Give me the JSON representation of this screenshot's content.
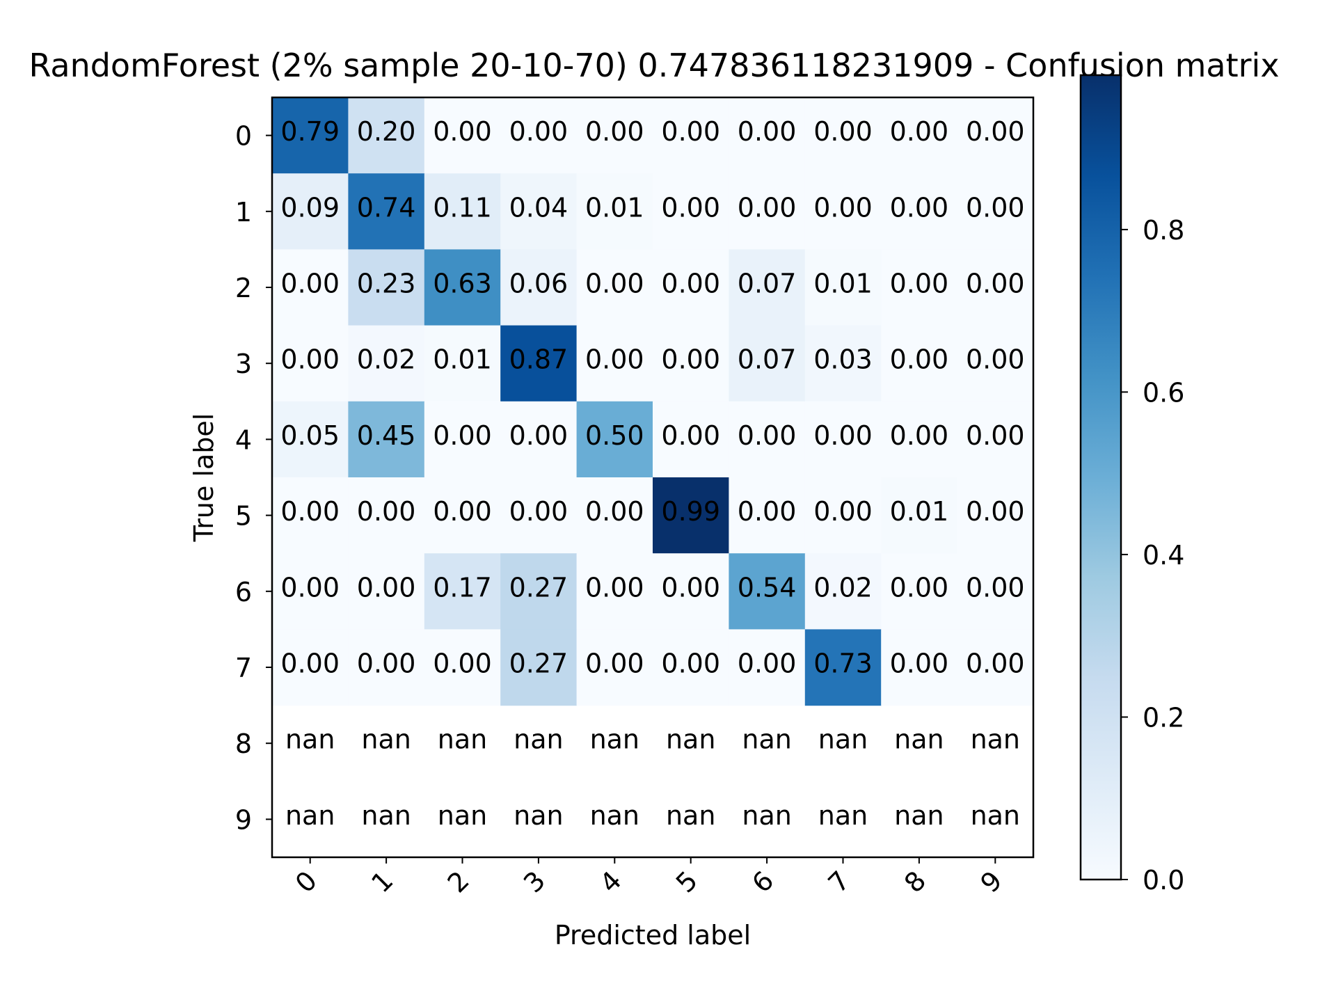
{
  "chart_data": {
    "type": "heatmap",
    "title": "RandomForest (2% sample 20-10-70) 0.747836118231909 - Confusion matrix",
    "xlabel": "Predicted label",
    "ylabel": "True label",
    "x_tick_labels": [
      "0",
      "1",
      "2",
      "3",
      "4",
      "5",
      "6",
      "7",
      "8",
      "9"
    ],
    "y_tick_labels": [
      "0",
      "1",
      "2",
      "3",
      "4",
      "5",
      "6",
      "7",
      "8",
      "9"
    ],
    "cells": [
      [
        "0.79",
        "0.20",
        "0.00",
        "0.00",
        "0.00",
        "0.00",
        "0.00",
        "0.00",
        "0.00",
        "0.00"
      ],
      [
        "0.09",
        "0.74",
        "0.11",
        "0.04",
        "0.01",
        "0.00",
        "0.00",
        "0.00",
        "0.00",
        "0.00"
      ],
      [
        "0.00",
        "0.23",
        "0.63",
        "0.06",
        "0.00",
        "0.00",
        "0.07",
        "0.01",
        "0.00",
        "0.00"
      ],
      [
        "0.00",
        "0.02",
        "0.01",
        "0.87",
        "0.00",
        "0.00",
        "0.07",
        "0.03",
        "0.00",
        "0.00"
      ],
      [
        "0.05",
        "0.45",
        "0.00",
        "0.00",
        "0.50",
        "0.00",
        "0.00",
        "0.00",
        "0.00",
        "0.00"
      ],
      [
        "0.00",
        "0.00",
        "0.00",
        "0.00",
        "0.00",
        "0.99",
        "0.00",
        "0.00",
        "0.01",
        "0.00"
      ],
      [
        "0.00",
        "0.00",
        "0.17",
        "0.27",
        "0.00",
        "0.00",
        "0.54",
        "0.02",
        "0.00",
        "0.00"
      ],
      [
        "0.00",
        "0.00",
        "0.00",
        "0.27",
        "0.00",
        "0.00",
        "0.00",
        "0.73",
        "0.00",
        "0.00"
      ],
      [
        "nan",
        "nan",
        "nan",
        "nan",
        "nan",
        "nan",
        "nan",
        "nan",
        "nan",
        "nan"
      ],
      [
        "nan",
        "nan",
        "nan",
        "nan",
        "nan",
        "nan",
        "nan",
        "nan",
        "nan",
        "nan"
      ]
    ],
    "colorbar": {
      "colormap": "Blues",
      "range": [
        0,
        0.99
      ],
      "ticks": [
        "0.0",
        "0.2",
        "0.4",
        "0.6",
        "0.8"
      ]
    }
  }
}
